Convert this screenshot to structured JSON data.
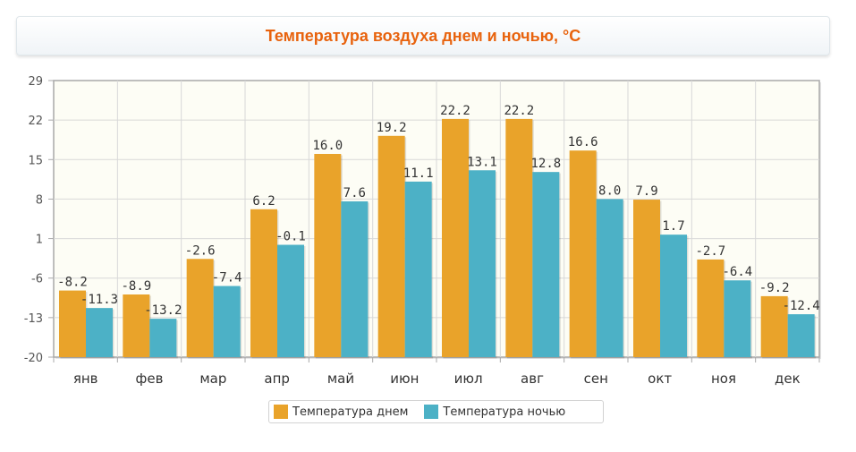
{
  "title": "Температура воздуха днем и ночью, °C",
  "colors": {
    "day": "#e9a32a",
    "night": "#4cb1c6",
    "title": "#e8630e",
    "plot_background": "#fdfdf5",
    "grid": "#d8d8d8"
  },
  "chart_data": {
    "type": "bar",
    "title": "Температура воздуха днем и ночью, °C",
    "xlabel": "",
    "ylabel": "",
    "categories": [
      "янв",
      "фев",
      "мар",
      "апр",
      "май",
      "июн",
      "июл",
      "авг",
      "сен",
      "окт",
      "ноя",
      "дек"
    ],
    "series": [
      {
        "name": "Температура днем",
        "values": [
          -8.2,
          -8.9,
          -2.6,
          6.2,
          16.0,
          19.2,
          22.2,
          22.2,
          16.6,
          7.9,
          -2.7,
          -9.2
        ]
      },
      {
        "name": "Температура ночью",
        "values": [
          -11.3,
          -13.2,
          -7.4,
          -0.1,
          7.6,
          11.1,
          13.1,
          12.8,
          8.0,
          1.7,
          -6.4,
          -12.4
        ]
      }
    ],
    "value_labels": [
      [
        "-8.2",
        "-8.9",
        "-2.6",
        "6.2",
        "16.0",
        "19.2",
        "22.2",
        "22.2",
        "16.6",
        "7.9",
        "-2.7",
        "-9.2"
      ],
      [
        "-11.3",
        "-13.2",
        "-7.4",
        "-0.1",
        "7.6",
        "11.1",
        "13.1",
        "12.8",
        "8.0",
        "1.7",
        "-6.4",
        "-12.4"
      ]
    ],
    "ylim": [
      -20,
      29
    ],
    "yticks": [
      -20,
      -13,
      -6,
      1,
      8,
      15,
      22,
      29
    ],
    "bar_baseline": -20,
    "grid": true,
    "legend_position": "bottom-center"
  }
}
